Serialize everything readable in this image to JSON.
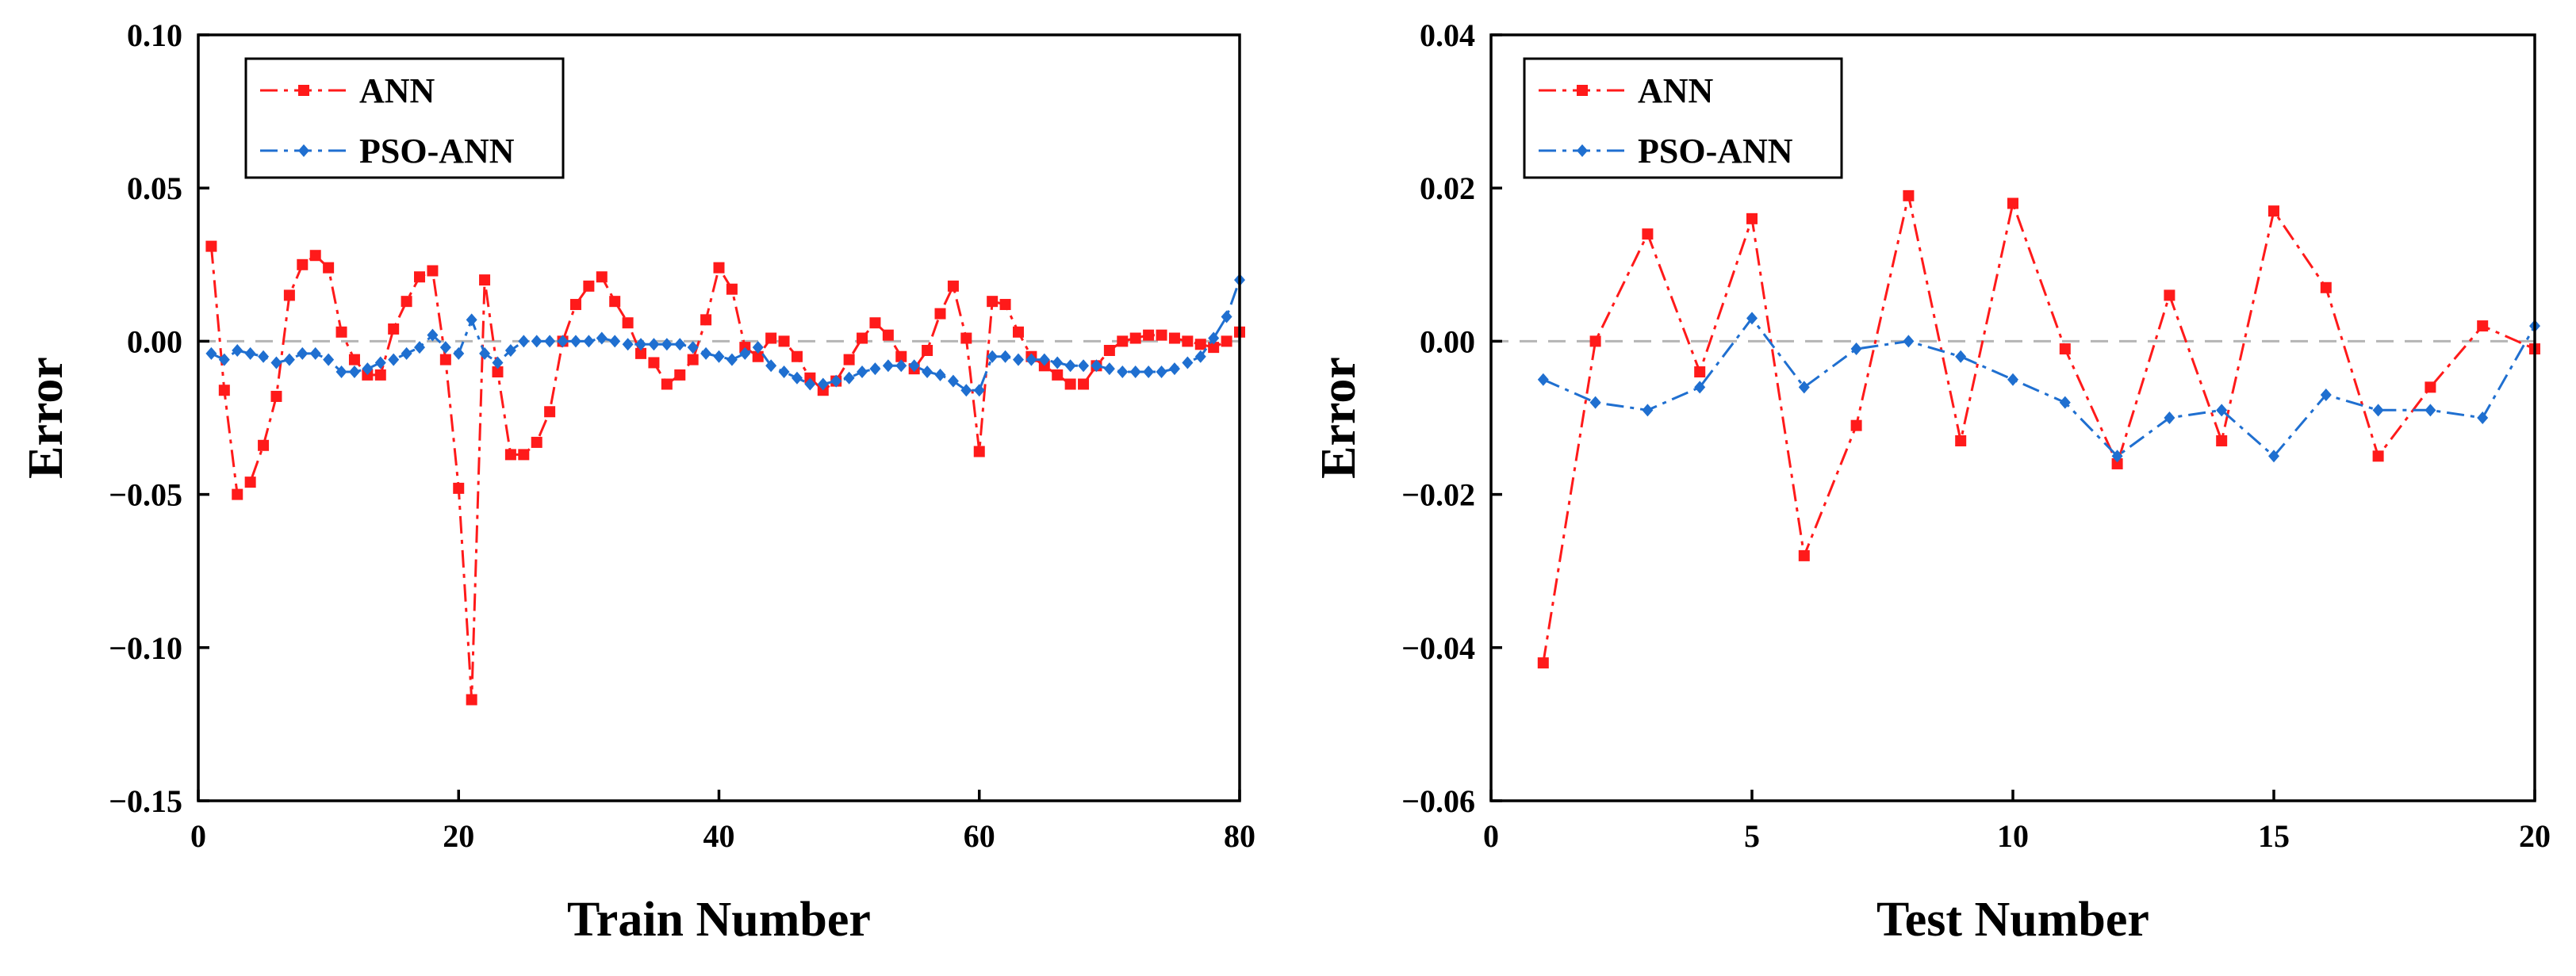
{
  "chart_data": [
    {
      "type": "line",
      "xlabel": "Train Number",
      "ylabel": "Error",
      "xlim": [
        0,
        80
      ],
      "ylim": [
        -0.15,
        0.1
      ],
      "xticks": [
        0,
        20,
        40,
        60,
        80
      ],
      "xtick_labels": [
        "0",
        "20",
        "40",
        "60",
        "80"
      ],
      "yticks": [
        -0.15,
        -0.1,
        -0.05,
        0.0,
        0.05,
        0.1
      ],
      "ytick_labels": [
        "−0.15",
        "−0.10",
        "−0.05",
        "0.00",
        "0.05",
        "0.10"
      ],
      "reference_line": 0,
      "legend_position": "top-left",
      "x": [
        1,
        2,
        3,
        4,
        5,
        6,
        7,
        8,
        9,
        10,
        11,
        12,
        13,
        14,
        15,
        16,
        17,
        18,
        19,
        20,
        21,
        22,
        23,
        24,
        25,
        26,
        27,
        28,
        29,
        30,
        31,
        32,
        33,
        34,
        35,
        36,
        37,
        38,
        39,
        40,
        41,
        42,
        43,
        44,
        45,
        46,
        47,
        48,
        49,
        50,
        51,
        52,
        53,
        54,
        55,
        56,
        57,
        58,
        59,
        60,
        61,
        62,
        63,
        64,
        65,
        66,
        67,
        68,
        69,
        70,
        71,
        72,
        73,
        74,
        75,
        76,
        77,
        78,
        79,
        80
      ],
      "series": [
        {
          "name": "ANN",
          "color": "#ff1a1a",
          "marker": "square",
          "values": [
            0.031,
            -0.016,
            -0.05,
            -0.046,
            -0.034,
            -0.018,
            0.015,
            0.025,
            0.028,
            0.024,
            0.003,
            -0.006,
            -0.011,
            -0.011,
            0.004,
            0.013,
            0.021,
            0.023,
            -0.006,
            -0.048,
            -0.117,
            0.02,
            -0.01,
            -0.037,
            -0.037,
            -0.033,
            -0.023,
            0.0,
            0.012,
            0.018,
            0.021,
            0.013,
            0.006,
            -0.004,
            -0.007,
            -0.014,
            -0.011,
            -0.006,
            0.007,
            0.024,
            0.017,
            -0.002,
            -0.005,
            0.001,
            0.0,
            -0.005,
            -0.012,
            -0.016,
            -0.013,
            -0.006,
            0.001,
            0.006,
            0.002,
            -0.005,
            -0.009,
            -0.003,
            0.009,
            0.018,
            0.001,
            -0.036,
            0.013,
            0.012,
            0.003,
            -0.005,
            -0.008,
            -0.011,
            -0.014,
            -0.014,
            -0.008,
            -0.003,
            0.0,
            0.001,
            0.002,
            0.002,
            0.001,
            0.0,
            -0.001,
            -0.002,
            0.0,
            0.003
          ]
        },
        {
          "name": "PSO-ANN",
          "color": "#1f6fd0",
          "marker": "diamond",
          "values": [
            -0.004,
            -0.006,
            -0.003,
            -0.004,
            -0.005,
            -0.007,
            -0.006,
            -0.004,
            -0.004,
            -0.006,
            -0.01,
            -0.01,
            -0.009,
            -0.007,
            -0.006,
            -0.004,
            -0.002,
            0.002,
            -0.002,
            -0.004,
            0.007,
            -0.004,
            -0.007,
            -0.003,
            0.0,
            0.0,
            0.0,
            0.0,
            0.0,
            0.0,
            0.001,
            0.0,
            -0.001,
            -0.001,
            -0.001,
            -0.001,
            -0.001,
            -0.002,
            -0.004,
            -0.005,
            -0.006,
            -0.004,
            -0.002,
            -0.008,
            -0.01,
            -0.012,
            -0.014,
            -0.014,
            -0.013,
            -0.012,
            -0.01,
            -0.009,
            -0.008,
            -0.008,
            -0.008,
            -0.01,
            -0.011,
            -0.013,
            -0.016,
            -0.016,
            -0.005,
            -0.005,
            -0.006,
            -0.006,
            -0.006,
            -0.007,
            -0.008,
            -0.008,
            -0.008,
            -0.009,
            -0.01,
            -0.01,
            -0.01,
            -0.01,
            -0.009,
            -0.007,
            -0.005,
            0.001,
            0.008,
            0.02
          ]
        }
      ]
    },
    {
      "type": "line",
      "xlabel": "Test Number",
      "ylabel": "Error",
      "xlim": [
        0,
        20
      ],
      "ylim": [
        -0.06,
        0.04
      ],
      "xticks": [
        0,
        5,
        10,
        15,
        20
      ],
      "xtick_labels": [
        "0",
        "5",
        "10",
        "15",
        "20"
      ],
      "yticks": [
        -0.06,
        -0.04,
        -0.02,
        0.0,
        0.02,
        0.04
      ],
      "ytick_labels": [
        "−0.06",
        "−0.04",
        "−0.02",
        "0.00",
        "0.02",
        "0.04"
      ],
      "reference_line": 0,
      "legend_position": "top-left",
      "x": [
        1,
        2,
        3,
        4,
        5,
        6,
        7,
        8,
        9,
        10,
        11,
        12,
        13,
        14,
        15,
        16,
        17,
        18,
        19,
        20
      ],
      "series": [
        {
          "name": "ANN",
          "color": "#ff1a1a",
          "marker": "square",
          "values": [
            -0.042,
            0.0,
            0.014,
            -0.004,
            0.016,
            -0.028,
            -0.011,
            0.019,
            -0.013,
            0.018,
            -0.001,
            -0.016,
            0.006,
            -0.013,
            0.017,
            0.007,
            -0.015,
            -0.006,
            0.002,
            -0.001
          ]
        },
        {
          "name": "PSO-ANN",
          "color": "#1f6fd0",
          "marker": "diamond",
          "values": [
            -0.005,
            -0.008,
            -0.009,
            -0.006,
            0.003,
            -0.006,
            -0.001,
            0.0,
            -0.002,
            -0.005,
            -0.008,
            -0.015,
            -0.01,
            -0.009,
            -0.015,
            -0.007,
            -0.009,
            -0.009,
            -0.01,
            0.002
          ]
        }
      ]
    }
  ]
}
